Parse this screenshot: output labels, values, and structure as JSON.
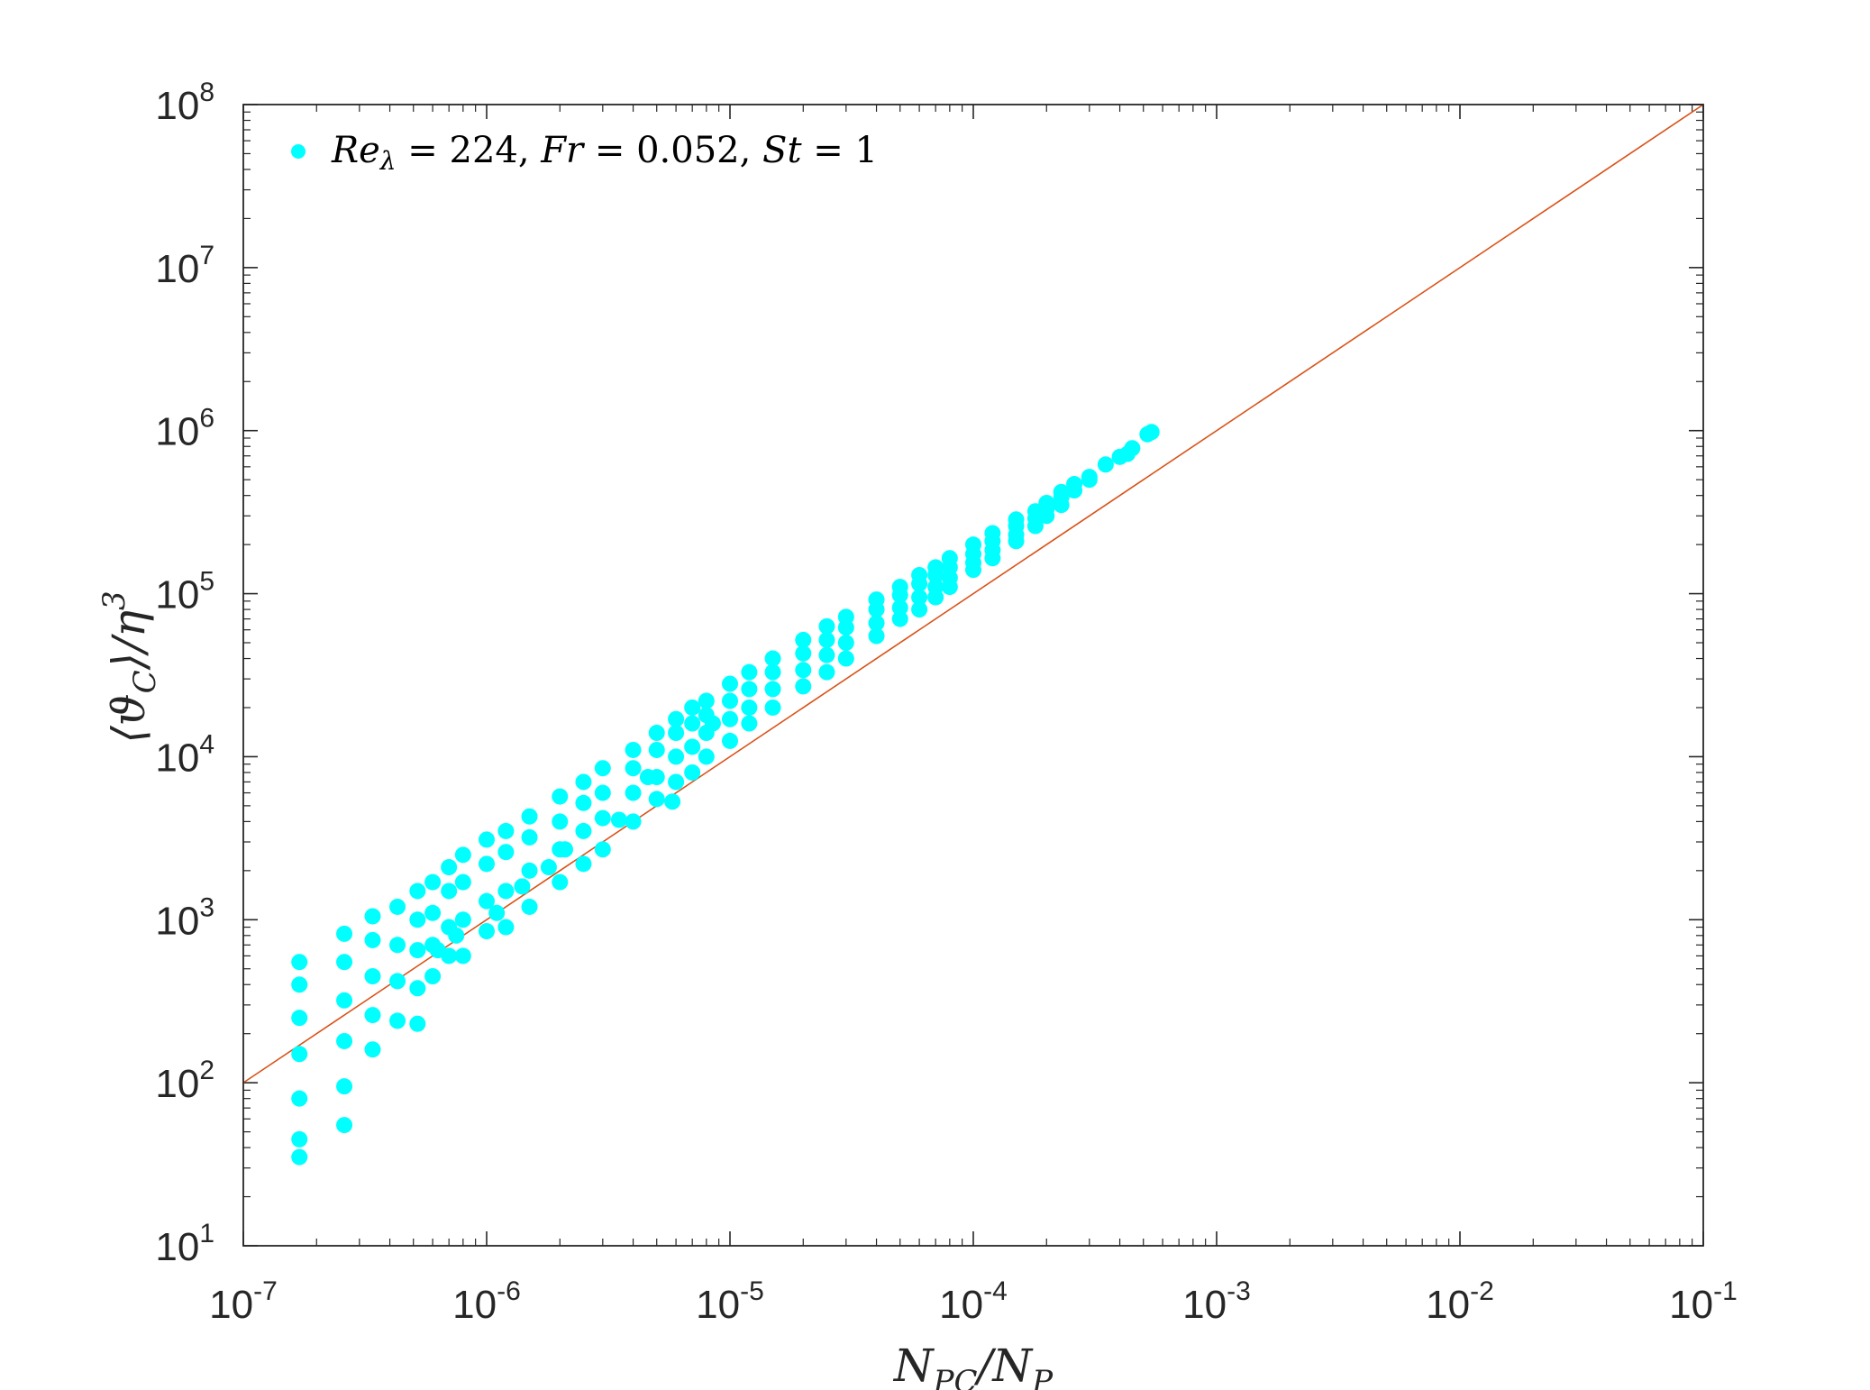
{
  "chart_data": {
    "type": "scatter",
    "xscale": "log",
    "yscale": "log",
    "xlim": [
      1e-07,
      0.1
    ],
    "ylim": [
      10,
      100000000.0
    ],
    "x_ticks": [
      {
        "base": "10",
        "exp": "-7",
        "value": 1e-07
      },
      {
        "base": "10",
        "exp": "-6",
        "value": 1e-06
      },
      {
        "base": "10",
        "exp": "-5",
        "value": 1e-05
      },
      {
        "base": "10",
        "exp": "-4",
        "value": 0.0001
      },
      {
        "base": "10",
        "exp": "-3",
        "value": 0.001
      },
      {
        "base": "10",
        "exp": "-2",
        "value": 0.01
      },
      {
        "base": "10",
        "exp": "-1",
        "value": 0.1
      }
    ],
    "y_ticks": [
      {
        "base": "10",
        "exp": "1",
        "value": 10
      },
      {
        "base": "10",
        "exp": "2",
        "value": 100
      },
      {
        "base": "10",
        "exp": "3",
        "value": 1000
      },
      {
        "base": "10",
        "exp": "4",
        "value": 10000
      },
      {
        "base": "10",
        "exp": "5",
        "value": 100000
      },
      {
        "base": "10",
        "exp": "6",
        "value": 1000000
      },
      {
        "base": "10",
        "exp": "7",
        "value": 10000000
      },
      {
        "base": "10",
        "exp": "8",
        "value": 100000000
      }
    ],
    "xlabel": "N_PC/N_P",
    "ylabel": "⟨ϑ_C⟩/η^3",
    "grid": false,
    "box": true,
    "legend_position": "top-left",
    "series": [
      {
        "name": "Re_λ = 224, Fr = 0.052, St = 1",
        "kind": "scatter",
        "color": "#00ffff",
        "points": [
          [
            1.7e-07,
            35
          ],
          [
            1.7e-07,
            45
          ],
          [
            1.7e-07,
            80
          ],
          [
            1.7e-07,
            150
          ],
          [
            1.7e-07,
            250
          ],
          [
            1.7e-07,
            400
          ],
          [
            1.7e-07,
            550
          ],
          [
            2.6e-07,
            55
          ],
          [
            2.6e-07,
            95
          ],
          [
            2.6e-07,
            180
          ],
          [
            2.6e-07,
            320
          ],
          [
            2.6e-07,
            550
          ],
          [
            2.6e-07,
            820
          ],
          [
            3.4e-07,
            160
          ],
          [
            3.4e-07,
            260
          ],
          [
            3.4e-07,
            450
          ],
          [
            3.4e-07,
            750
          ],
          [
            3.4e-07,
            1050
          ],
          [
            4.3e-07,
            240
          ],
          [
            4.3e-07,
            420
          ],
          [
            4.3e-07,
            700
          ],
          [
            4.3e-07,
            1200
          ],
          [
            5.2e-07,
            230
          ],
          [
            5.2e-07,
            380
          ],
          [
            5.2e-07,
            650
          ],
          [
            5.2e-07,
            1000
          ],
          [
            5.2e-07,
            1500
          ],
          [
            6e-07,
            450
          ],
          [
            6e-07,
            700
          ],
          [
            6e-07,
            1100
          ],
          [
            6e-07,
            1700
          ],
          [
            7e-07,
            600
          ],
          [
            7e-07,
            900
          ],
          [
            7e-07,
            1500
          ],
          [
            7e-07,
            2100
          ],
          [
            8e-07,
            600
          ],
          [
            8e-07,
            1000
          ],
          [
            8e-07,
            1700
          ],
          [
            8e-07,
            2500
          ],
          [
            1e-06,
            850
          ],
          [
            1e-06,
            1300
          ],
          [
            1e-06,
            2200
          ],
          [
            1e-06,
            3100
          ],
          [
            1.2e-06,
            900
          ],
          [
            1.2e-06,
            1500
          ],
          [
            1.2e-06,
            2600
          ],
          [
            1.2e-06,
            3500
          ],
          [
            1.5e-06,
            1200
          ],
          [
            1.5e-06,
            2000
          ],
          [
            1.5e-06,
            3200
          ],
          [
            1.5e-06,
            4300
          ],
          [
            2e-06,
            1700
          ],
          [
            2e-06,
            2700
          ],
          [
            2e-06,
            4000
          ],
          [
            2e-06,
            5700
          ],
          [
            2.5e-06,
            2200
          ],
          [
            2.5e-06,
            3500
          ],
          [
            2.5e-06,
            5200
          ],
          [
            2.5e-06,
            7000
          ],
          [
            3e-06,
            2700
          ],
          [
            3e-06,
            4200
          ],
          [
            3e-06,
            6000
          ],
          [
            3e-06,
            8500
          ],
          [
            4e-06,
            4000
          ],
          [
            4e-06,
            6000
          ],
          [
            4e-06,
            8500
          ],
          [
            4e-06,
            11000
          ],
          [
            5e-06,
            5500
          ],
          [
            5e-06,
            7500
          ],
          [
            5e-06,
            11000
          ],
          [
            5e-06,
            14000
          ],
          [
            6e-06,
            7000
          ],
          [
            6e-06,
            10000
          ],
          [
            6e-06,
            14000
          ],
          [
            6e-06,
            17000
          ],
          [
            7e-06,
            8000
          ],
          [
            7e-06,
            11500
          ],
          [
            7e-06,
            16000
          ],
          [
            7e-06,
            20000
          ],
          [
            8e-06,
            10000
          ],
          [
            8e-06,
            14000
          ],
          [
            8e-06,
            18000
          ],
          [
            8e-06,
            22000
          ],
          [
            1e-05,
            12500
          ],
          [
            1e-05,
            17000
          ],
          [
            1e-05,
            22000
          ],
          [
            1e-05,
            28000
          ],
          [
            1.2e-05,
            16000
          ],
          [
            1.2e-05,
            20000
          ],
          [
            1.2e-05,
            26000
          ],
          [
            1.2e-05,
            33000
          ],
          [
            1.5e-05,
            20000
          ],
          [
            1.5e-05,
            26000
          ],
          [
            1.5e-05,
            33000
          ],
          [
            1.5e-05,
            40000
          ],
          [
            2e-05,
            27000
          ],
          [
            2e-05,
            34000
          ],
          [
            2e-05,
            43000
          ],
          [
            2e-05,
            52000
          ],
          [
            2.5e-05,
            33000
          ],
          [
            2.5e-05,
            42000
          ],
          [
            2.5e-05,
            52000
          ],
          [
            2.5e-05,
            63000
          ],
          [
            3e-05,
            40000
          ],
          [
            3e-05,
            50000
          ],
          [
            3e-05,
            62000
          ],
          [
            3e-05,
            72000
          ],
          [
            4e-05,
            55000
          ],
          [
            4e-05,
            66000
          ],
          [
            4e-05,
            80000
          ],
          [
            4e-05,
            92000
          ],
          [
            5e-05,
            70000
          ],
          [
            5e-05,
            82000
          ],
          [
            5e-05,
            98000
          ],
          [
            5e-05,
            110000
          ],
          [
            6e-05,
            80000
          ],
          [
            6e-05,
            95000
          ],
          [
            6e-05,
            115000
          ],
          [
            6e-05,
            130000
          ],
          [
            7e-05,
            95000
          ],
          [
            7e-05,
            110000
          ],
          [
            7e-05,
            130000
          ],
          [
            7e-05,
            145000
          ],
          [
            8e-05,
            110000
          ],
          [
            8e-05,
            125000
          ],
          [
            8e-05,
            145000
          ],
          [
            8e-05,
            165000
          ],
          [
            0.0001,
            140000
          ],
          [
            0.0001,
            155000
          ],
          [
            0.0001,
            175000
          ],
          [
            0.0001,
            200000
          ],
          [
            0.00012,
            165000
          ],
          [
            0.00012,
            185000
          ],
          [
            0.00012,
            210000
          ],
          [
            0.00012,
            235000
          ],
          [
            0.00015,
            210000
          ],
          [
            0.00015,
            230000
          ],
          [
            0.00015,
            260000
          ],
          [
            0.00015,
            285000
          ],
          [
            0.00018,
            260000
          ],
          [
            0.00018,
            290000
          ],
          [
            0.00018,
            320000
          ],
          [
            0.0002,
            300000
          ],
          [
            0.0002,
            330000
          ],
          [
            0.0002,
            360000
          ],
          [
            0.00023,
            350000
          ],
          [
            0.00023,
            390000
          ],
          [
            0.00023,
            420000
          ],
          [
            0.00026,
            430000
          ],
          [
            0.00026,
            470000
          ],
          [
            0.0003,
            500000
          ],
          [
            0.0003,
            520000
          ],
          [
            0.00035,
            620000
          ],
          [
            0.0004,
            690000
          ],
          [
            0.00043,
            720000
          ],
          [
            0.00045,
            780000
          ],
          [
            0.00052,
            950000
          ],
          [
            0.00054,
            980000
          ],
          [
            3.5e-06,
            4100
          ],
          [
            5.8e-06,
            5300
          ],
          [
            2.1e-06,
            2700
          ],
          [
            1.4e-06,
            1600
          ],
          [
            8.5e-06,
            16000
          ],
          [
            4.6e-06,
            7500
          ],
          [
            1.8e-06,
            2100
          ],
          [
            1.1e-06,
            1100
          ],
          [
            6.3e-07,
            650
          ],
          [
            7.5e-07,
            800
          ]
        ]
      },
      {
        "name": "",
        "kind": "line",
        "color": "#d95319",
        "x": [
          1e-07,
          0.1
        ],
        "y": [
          100,
          100000000
        ]
      }
    ]
  }
}
